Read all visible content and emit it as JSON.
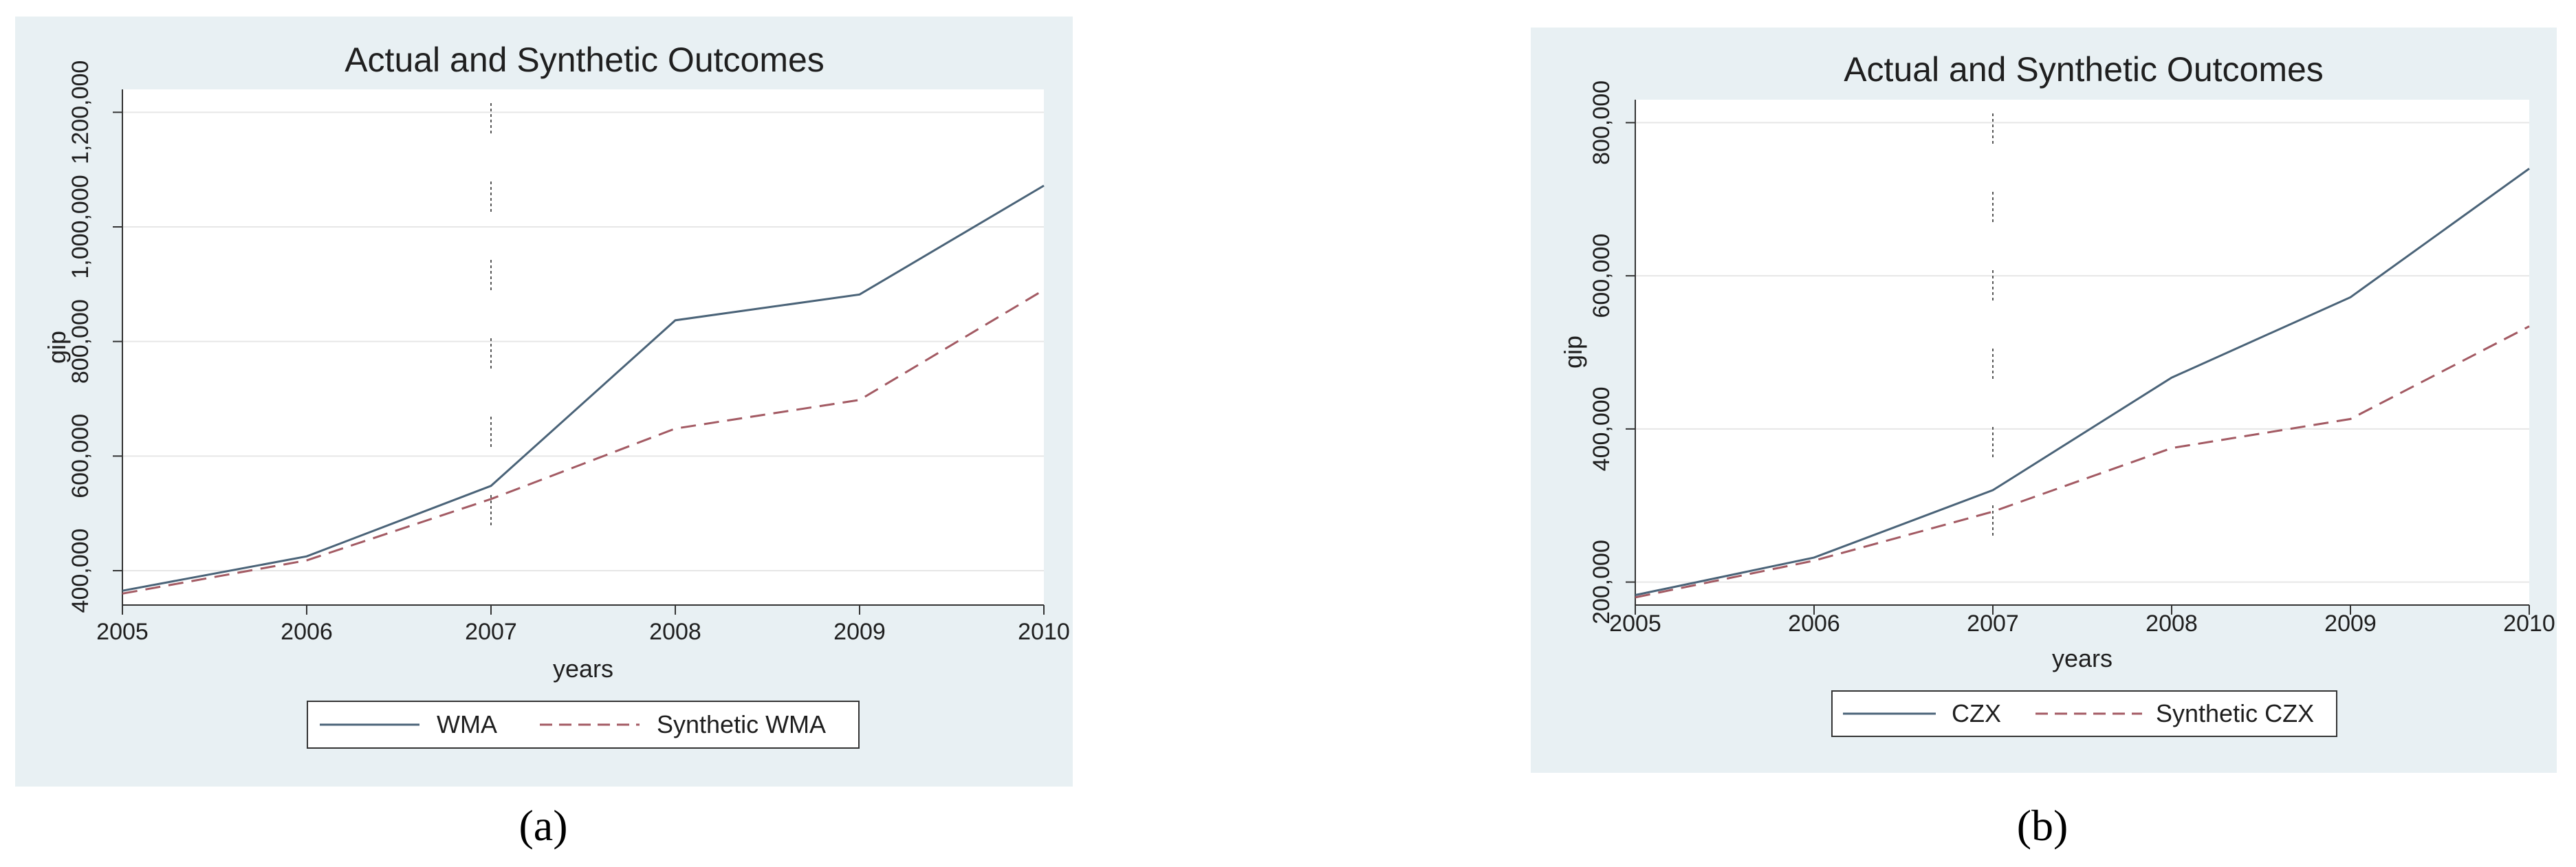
{
  "chart_data": [
    {
      "panel": "(a)",
      "type": "line",
      "title": "Actual and Synthetic Outcomes",
      "xlabel": "years",
      "ylabel": "gip",
      "x": [
        2005,
        2006,
        2007,
        2008,
        2009,
        2010
      ],
      "x_ticks": [
        "2005",
        "2006",
        "2007",
        "2008",
        "2009",
        "2010"
      ],
      "y_ticks": [
        400000,
        600000,
        800000,
        1000000,
        1200000
      ],
      "y_tick_labels": [
        "400,000",
        "600,000",
        "800,000",
        "1,000,000",
        "1,200,000"
      ],
      "ylim": [
        340000,
        1240000
      ],
      "xlim": [
        2005,
        2010
      ],
      "vline": 2007,
      "grid": true,
      "legend_position": "bottom",
      "series": [
        {
          "name": "WMA",
          "style": "solid",
          "color": "#4a6378",
          "values": [
            365000,
            425000,
            548000,
            837000,
            882000,
            1072000
          ]
        },
        {
          "name": "Synthetic WMA",
          "style": "dashed",
          "color": "#a35a63",
          "values": [
            360000,
            418000,
            525000,
            648000,
            698000,
            890000
          ]
        }
      ]
    },
    {
      "panel": "(b)",
      "type": "line",
      "title": "Actual and Synthetic Outcomes",
      "xlabel": "years",
      "ylabel": "gip",
      "x": [
        2005,
        2006,
        2007,
        2008,
        2009,
        2010
      ],
      "x_ticks": [
        "2005",
        "2006",
        "2007",
        "2008",
        "2009",
        "2010"
      ],
      "y_ticks": [
        200000,
        400000,
        600000,
        800000
      ],
      "y_tick_labels": [
        "200,000",
        "400,000",
        "600,000",
        "800,000"
      ],
      "ylim": [
        170000,
        830000
      ],
      "xlim": [
        2005,
        2010
      ],
      "vline": 2007,
      "grid": true,
      "legend_position": "bottom",
      "series": [
        {
          "name": "CZX",
          "style": "solid",
          "color": "#4a6378",
          "values": [
            183000,
            232000,
            320000,
            467000,
            572000,
            740000
          ]
        },
        {
          "name": "Synthetic CZX",
          "style": "dashed",
          "color": "#a35a63",
          "values": [
            180000,
            228000,
            292000,
            375000,
            413000,
            534000
          ]
        }
      ]
    }
  ],
  "captions": [
    "(a)",
    "(b)"
  ]
}
